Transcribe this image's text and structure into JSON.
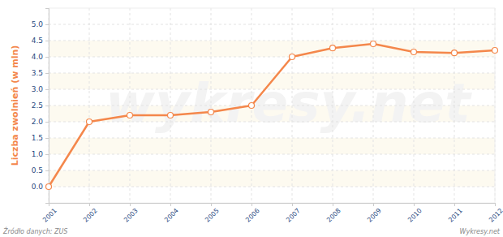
{
  "chart_data": {
    "type": "line",
    "y_label": "Liczba zwolnień (w mln)",
    "source": "Źródło danych: ZUS",
    "credit": "Wykresy.net",
    "watermark": "wykresy.net",
    "x": [
      2001,
      2002,
      2003,
      2004,
      2005,
      2006,
      2007,
      2008,
      2009,
      2010,
      2011,
      2012
    ],
    "values": [
      0.0,
      2.0,
      2.2,
      2.2,
      2.3,
      2.5,
      4.0,
      4.27,
      4.4,
      4.15,
      4.12,
      4.2
    ],
    "color": "#f4874b",
    "marker": "circle",
    "xlim": [
      2001,
      2012
    ],
    "xticks": [
      2001,
      2002,
      2003,
      2004,
      2005,
      2006,
      2007,
      2008,
      2009,
      2010,
      2011,
      2012
    ],
    "ylim": [
      -0.5,
      5.5
    ],
    "yticks": [
      {
        "value": 0,
        "label": "0.0"
      },
      0.5,
      {
        "value": 1,
        "label": "1.0"
      },
      1.5,
      {
        "value": 2,
        "label": "2.0"
      },
      2.5,
      {
        "value": 3,
        "label": "3.0"
      },
      3.5,
      {
        "value": 4,
        "label": "4.0"
      },
      4.5,
      {
        "value": 5,
        "label": "5.0"
      }
    ],
    "grid": true
  }
}
